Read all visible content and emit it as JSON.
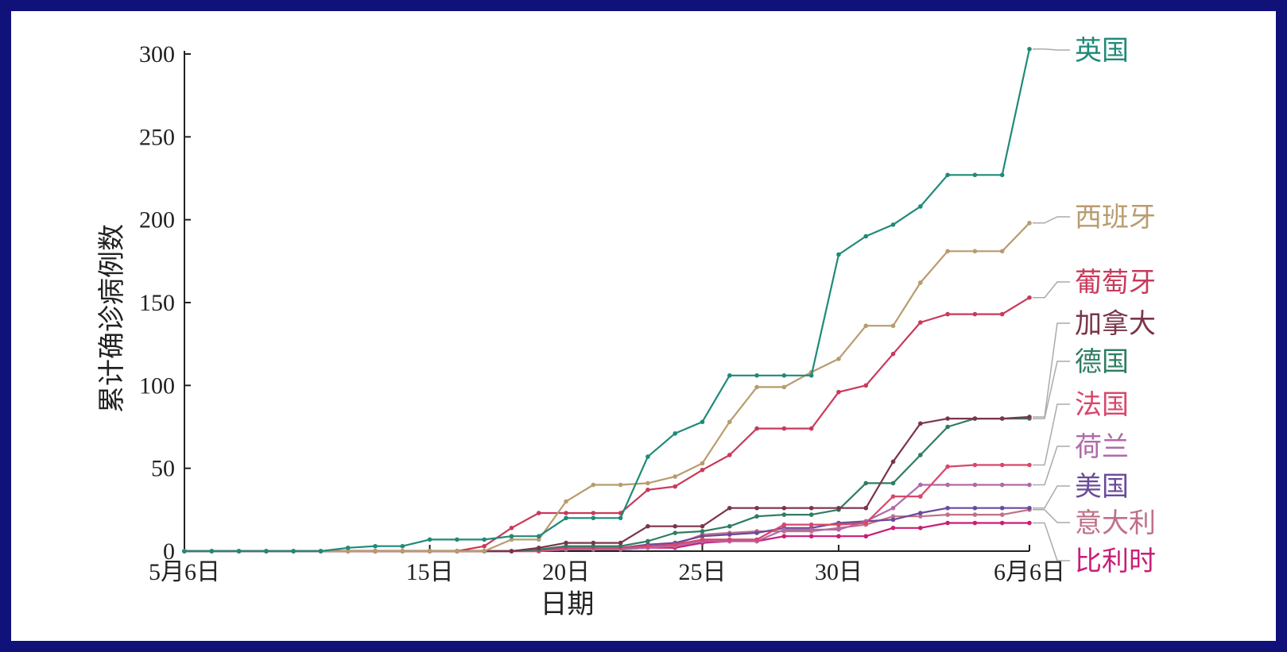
{
  "chart_data": {
    "type": "line",
    "xlabel": "日期",
    "ylabel": "累计确诊病例数",
    "ylim": [
      0,
      300
    ],
    "yticks": [
      "0",
      "50",
      "100",
      "150",
      "200",
      "250",
      "300"
    ],
    "xticks": [
      {
        "day": 0,
        "label": "5月6日"
      },
      {
        "day": 9,
        "label": "15日"
      },
      {
        "day": 14,
        "label": "20日"
      },
      {
        "day": 19,
        "label": "25日"
      },
      {
        "day": 24,
        "label": "30日"
      },
      {
        "day": 31,
        "label": "6月6日"
      }
    ],
    "x": [
      0,
      1,
      2,
      3,
      4,
      5,
      6,
      7,
      8,
      9,
      10,
      11,
      12,
      13,
      14,
      15,
      16,
      17,
      18,
      19,
      20,
      21,
      22,
      23,
      24,
      25,
      26,
      27,
      28,
      29,
      30,
      31
    ],
    "series": [
      {
        "name": "英国",
        "color": "#1f8a78",
        "values": [
          0,
          0,
          0,
          0,
          0,
          0,
          2,
          3,
          3,
          7,
          7,
          7,
          9,
          9,
          20,
          20,
          20,
          57,
          71,
          78,
          106,
          106,
          106,
          106,
          179,
          190,
          197,
          208,
          227,
          227,
          227,
          303
        ]
      },
      {
        "name": "西班牙",
        "color": "#b89c6e",
        "values": [
          0,
          0,
          0,
          0,
          0,
          0,
          0,
          0,
          0,
          0,
          0,
          0,
          7,
          7,
          30,
          40,
          40,
          41,
          45,
          53,
          78,
          99,
          99,
          108,
          116,
          136,
          136,
          162,
          181,
          181,
          181,
          198
        ]
      },
      {
        "name": "葡萄牙",
        "color": "#c83a5a",
        "values": [
          0,
          0,
          0,
          0,
          0,
          0,
          0,
          0,
          0,
          0,
          0,
          3,
          14,
          23,
          23,
          23,
          23,
          37,
          39,
          49,
          58,
          74,
          74,
          74,
          96,
          100,
          119,
          138,
          143,
          143,
          143,
          153
        ]
      },
      {
        "name": "加拿大",
        "color": "#7a3548",
        "values": [
          0,
          0,
          0,
          0,
          0,
          0,
          0,
          0,
          0,
          0,
          0,
          0,
          0,
          2,
          5,
          5,
          5,
          15,
          15,
          15,
          26,
          26,
          26,
          26,
          26,
          26,
          54,
          77,
          80,
          80,
          80,
          81
        ]
      },
      {
        "name": "德国",
        "color": "#2e7d62",
        "values": [
          0,
          0,
          0,
          0,
          0,
          0,
          0,
          0,
          0,
          0,
          0,
          0,
          0,
          1,
          3,
          3,
          3,
          6,
          11,
          12,
          15,
          21,
          22,
          22,
          25,
          41,
          41,
          58,
          75,
          80,
          80,
          80
        ]
      },
      {
        "name": "法国",
        "color": "#d9476a",
        "values": [
          0,
          0,
          0,
          0,
          0,
          0,
          0,
          0,
          0,
          0,
          0,
          0,
          0,
          0,
          2,
          2,
          2,
          3,
          4,
          7,
          7,
          7,
          16,
          16,
          16,
          17,
          33,
          33,
          51,
          52,
          52,
          52
        ]
      },
      {
        "name": "荷兰",
        "color": "#b06aa8",
        "values": [
          0,
          0,
          0,
          0,
          0,
          0,
          0,
          0,
          0,
          0,
          0,
          0,
          0,
          0,
          1,
          1,
          1,
          2,
          3,
          6,
          6,
          6,
          13,
          13,
          13,
          18,
          26,
          40,
          40,
          40,
          40,
          40
        ]
      },
      {
        "name": "美国",
        "color": "#6a4a9a",
        "values": [
          0,
          0,
          0,
          0,
          0,
          0,
          0,
          0,
          0,
          0,
          0,
          0,
          0,
          1,
          2,
          2,
          2,
          4,
          5,
          9,
          10,
          11,
          14,
          14,
          17,
          18,
          19,
          23,
          26,
          26,
          26,
          26
        ]
      },
      {
        "name": "意大利",
        "color": "#c07088",
        "values": [
          0,
          0,
          0,
          0,
          0,
          0,
          0,
          0,
          0,
          0,
          0,
          0,
          0,
          1,
          2,
          2,
          2,
          3,
          4,
          10,
          11,
          12,
          12,
          12,
          14,
          16,
          21,
          21,
          22,
          22,
          22,
          25
        ]
      },
      {
        "name": "比利时",
        "color": "#c81e78",
        "values": [
          0,
          0,
          0,
          0,
          0,
          0,
          0,
          0,
          0,
          0,
          0,
          0,
          0,
          0,
          1,
          1,
          1,
          2,
          2,
          5,
          6,
          6,
          9,
          9,
          9,
          9,
          14,
          14,
          17,
          17,
          17,
          17
        ]
      }
    ]
  }
}
